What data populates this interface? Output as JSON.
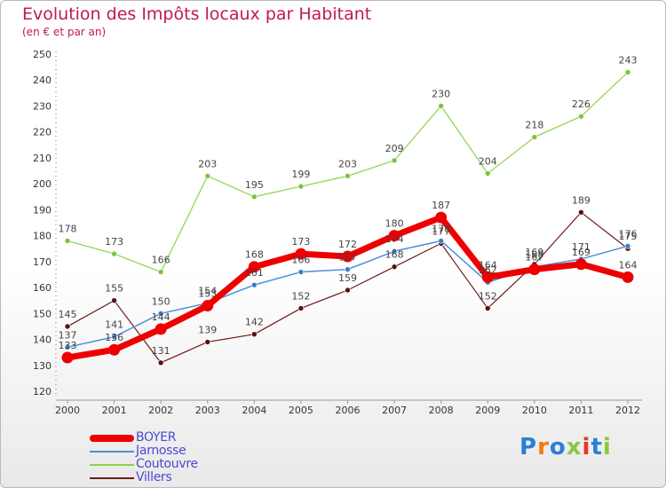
{
  "chart_data": {
    "type": "line",
    "title": "Evolution des Impôts locaux par Habitant",
    "subtitle": "(en € et par an)",
    "x": [
      "2000",
      "2001",
      "2002",
      "2003",
      "2004",
      "2005",
      "2006",
      "2007",
      "2008",
      "2009",
      "2010",
      "2011",
      "2012"
    ],
    "ylim": [
      120,
      250
    ],
    "yticks": [
      120,
      130,
      140,
      150,
      160,
      170,
      180,
      190,
      200,
      210,
      220,
      230,
      240,
      250
    ],
    "grid": false,
    "legend_position": "bottom-left",
    "series": [
      {
        "name": "BOYER",
        "color": "#ee0000",
        "values": [
          133,
          136,
          144,
          153,
          168,
          173,
          172,
          180,
          187,
          164,
          167,
          169,
          164
        ]
      },
      {
        "name": "Jarnosse",
        "color": "#4a90d9",
        "values": [
          137,
          141,
          150,
          154,
          161,
          166,
          167,
          174,
          178,
          162,
          168,
          171,
          176
        ]
      },
      {
        "name": "Coutouvre",
        "color": "#8cd24a",
        "values": [
          178,
          173,
          166,
          203,
          195,
          199,
          203,
          209,
          230,
          204,
          218,
          226,
          243
        ]
      },
      {
        "name": "Villers",
        "color": "#6e1a1a",
        "values": [
          145,
          155,
          131,
          139,
          142,
          152,
          159,
          168,
          177,
          152,
          169,
          189,
          175
        ]
      }
    ]
  },
  "logo": {
    "text": "Proxiti",
    "colors": [
      "#2a7fd4",
      "#f07a10",
      "#2a7fd4",
      "#8cc63e",
      "#e8352c",
      "#2a7fd4",
      "#8cc63e"
    ]
  }
}
